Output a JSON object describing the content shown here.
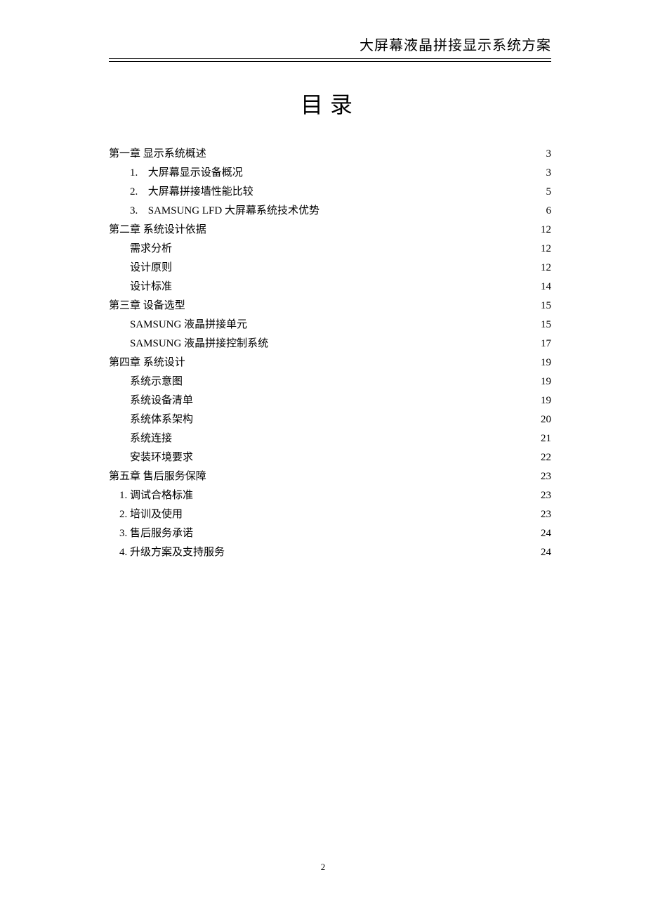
{
  "document": {
    "header_title": "大屏幕液晶拼接显示系统方案",
    "toc_title": "目录",
    "page_number": "2",
    "font_family_cjk": "SimSun",
    "font_family_heading": "SimHei",
    "font_family_latin": "Times New Roman",
    "text_color": "#000000",
    "background_color": "#ffffff",
    "header_fontsize": 20,
    "toc_title_fontsize": 32,
    "toc_entry_fontsize": 15,
    "page_number_fontsize": 13
  },
  "toc": {
    "ch1": {
      "label": "第一章  显示系统概述",
      "page": "3"
    },
    "ch1_1": {
      "num": "1.",
      "label": "大屏幕显示设备概况",
      "page": "3"
    },
    "ch1_2": {
      "num": "2.",
      "label": "大屏幕拼接墙性能比较",
      "page": "5"
    },
    "ch1_3": {
      "num": "3.",
      "label_en": "SAMSUNG LFD ",
      "label_cn": "大屏幕系统技术优势",
      "page": "6"
    },
    "ch2": {
      "label": "第二章  系统设计依据",
      "page": "12"
    },
    "ch2_1": {
      "label": "需求分析",
      "page": "12"
    },
    "ch2_2": {
      "label": "设计原则",
      "page": "12"
    },
    "ch2_3": {
      "label": "设计标准",
      "page": "14"
    },
    "ch3": {
      "label": "第三章  设备选型",
      "page": "15"
    },
    "ch3_1": {
      "label_en": "SAMSUNG ",
      "label_cn": "液晶拼接单元",
      "page": "15"
    },
    "ch3_2": {
      "label_en": "SAMSUNG ",
      "label_cn": "液晶拼接控制系统",
      "page": "17"
    },
    "ch4": {
      "label": "第四章  系统设计",
      "page": "19"
    },
    "ch4_1": {
      "label": "系统示意图",
      "page": "19"
    },
    "ch4_2": {
      "label": "系统设备清单",
      "page": "19"
    },
    "ch4_3": {
      "label": "系统体系架构",
      "page": "20"
    },
    "ch4_4": {
      "label": "系统连接",
      "page": "21"
    },
    "ch4_5": {
      "label": "安装环境要求",
      "page": "22"
    },
    "ch5": {
      "label": "第五章  售后服务保障",
      "page": "23"
    },
    "ch5_1": {
      "num": "1. ",
      "label": "调试合格标准",
      "page": "23"
    },
    "ch5_2": {
      "num": "2. ",
      "label": "培训及使用",
      "page": "23"
    },
    "ch5_3": {
      "num": "3. ",
      "label": "售后服务承诺",
      "page": "24"
    },
    "ch5_4": {
      "num": "4. ",
      "label": "升级方案及支持服务",
      "page": "24"
    }
  }
}
